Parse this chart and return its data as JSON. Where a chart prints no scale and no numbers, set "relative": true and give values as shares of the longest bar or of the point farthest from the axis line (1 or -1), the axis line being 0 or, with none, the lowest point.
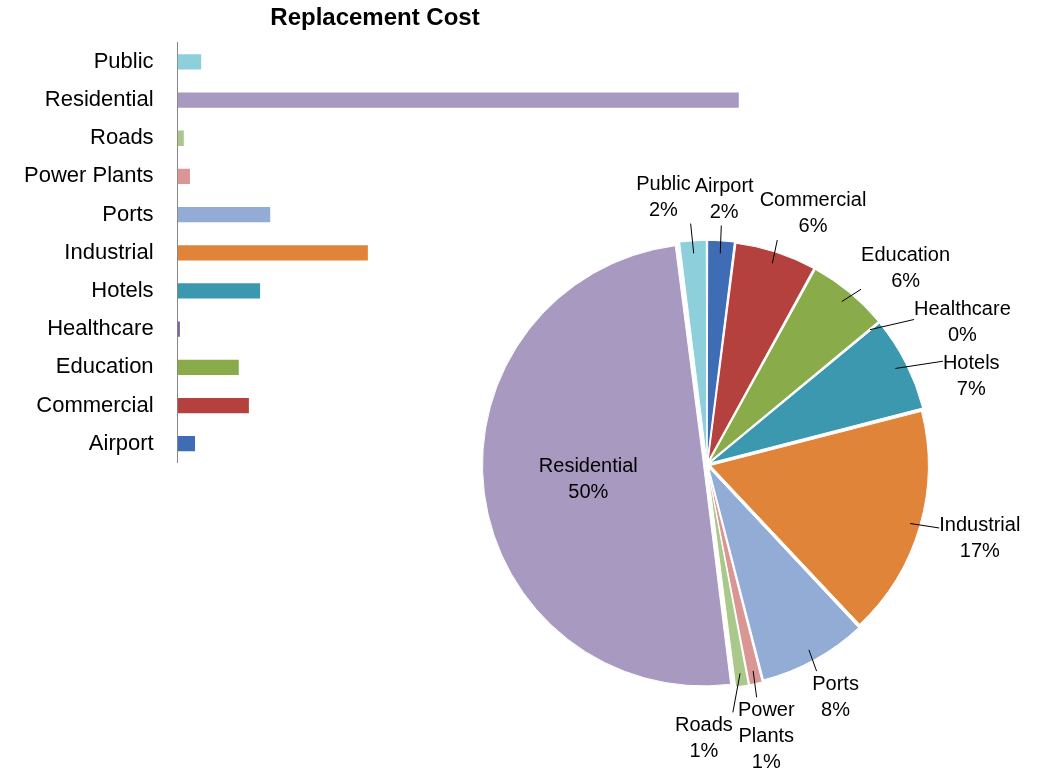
{
  "chart_data": [
    {
      "type": "bar",
      "title": "Replacement Cost",
      "orientation": "horizontal",
      "relative": true,
      "legend": false,
      "categories": [
        "Public",
        "Residential",
        "Roads",
        "Power Plants",
        "Ports",
        "Industrial",
        "Hotels",
        "Healthcare",
        "Education",
        "Commercial",
        "Airport"
      ],
      "values": [
        0.042,
        1,
        0.011,
        0.022,
        0.165,
        0.339,
        0.147,
        0.004,
        0.109,
        0.127,
        0.031
      ],
      "colors": [
        "#8ecfdc",
        "#a899c0",
        "#a9c88a",
        "#d99694",
        "#93acd6",
        "#e0843a",
        "#3b98ae",
        "#7b5fa0",
        "#8aab4a",
        "#b5413f",
        "#3e6db5"
      ]
    },
    {
      "type": "pie",
      "legend": false,
      "value_labels": [
        "2%",
        "6%",
        "6%",
        "0%",
        "7%",
        "17%",
        "8%",
        "1%",
        "1%",
        "50%",
        "2%"
      ],
      "categories": [
        "Airport",
        "Commercial",
        "Education",
        "Healthcare",
        "Hotels",
        "Industrial",
        "Ports",
        "Power Plants",
        "Roads",
        "Residential",
        "Public"
      ],
      "values": [
        2,
        6,
        6,
        0,
        7,
        17,
        8,
        1,
        1,
        50,
        2
      ],
      "colors": [
        "#3e6db5",
        "#b5413f",
        "#8aab4a",
        "#7b5fa0",
        "#3b98ae",
        "#e0843a",
        "#93acd6",
        "#d99694",
        "#a9c88a",
        "#a899c0",
        "#8ecfdc"
      ]
    }
  ]
}
